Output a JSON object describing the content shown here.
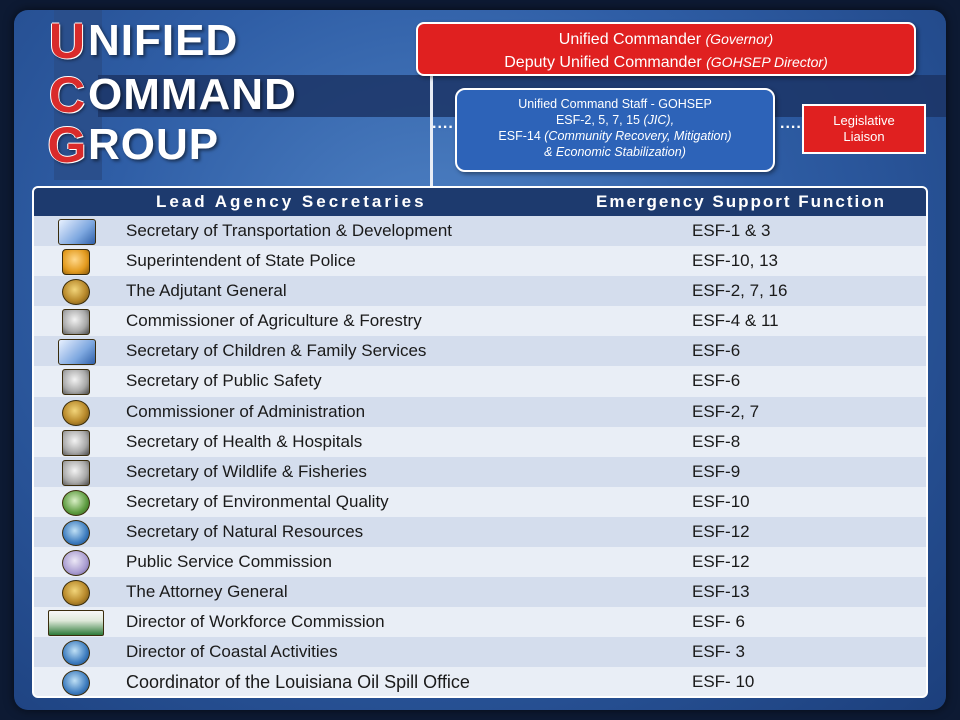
{
  "logo": {
    "line1": {
      "initial": "U",
      "rest": "NIFIED"
    },
    "line2": {
      "initial": "C",
      "rest": "OMMAND"
    },
    "line3": {
      "initial": "G",
      "rest": "ROUP"
    }
  },
  "commander": {
    "line1_main": "Unified Commander",
    "line1_sub": "(Governor)",
    "line2_main": "Deputy Unified Commander",
    "line2_sub": "(GOHSEP Director)"
  },
  "staff": {
    "line1": "Unified Command Staff - GOHSEP",
    "line2_main": "ESF-2, 5, 7, 15",
    "line2_sub": "(JIC),",
    "line3_main": "ESF-14",
    "line3_sub": "(Community Recovery, Mitigation)",
    "line4": "& Economic Stabilization)"
  },
  "liaison": {
    "line1": "Legislative",
    "line2": "Liaison"
  },
  "connectors": {
    "left": "....",
    "right": "...."
  },
  "table": {
    "header_left": "Lead Agency Secretaries",
    "header_right": "Emergency Support Function",
    "rows": [
      {
        "icon": "dotd-seal-icon",
        "secretary": "Secretary of Transportation & Development",
        "esf": "ESF-1 & 3"
      },
      {
        "icon": "state-police-badge-icon",
        "secretary": "Superintendent of State Police",
        "esf": "ESF-10, 13"
      },
      {
        "icon": "adjutant-general-seal-icon",
        "secretary": "The Adjutant General",
        "esf": "ESF-2, 7, 16"
      },
      {
        "icon": "agriculture-seal-icon",
        "secretary": "Commissioner of Agriculture & Forestry",
        "esf": "ESF-4 & 11"
      },
      {
        "icon": "children-family-services-logo-icon",
        "secretary": "Secretary of Children & Family Services",
        "esf": "ESF-6"
      },
      {
        "icon": "public-safety-seal-icon",
        "secretary": "Secretary of Public Safety",
        "esf": "ESF-6"
      },
      {
        "icon": "administration-seal-icon",
        "secretary": "Commissioner of Administration",
        "esf": "ESF-2, 7"
      },
      {
        "icon": "health-hospitals-logo-icon",
        "secretary": "Secretary of Health & Hospitals",
        "esf": "ESF-8"
      },
      {
        "icon": "wildlife-fisheries-seal-icon",
        "secretary": "Secretary of Wildlife & Fisheries",
        "esf": "ESF-9"
      },
      {
        "icon": "deq-logo-icon",
        "secretary": "Secretary of Environmental Quality",
        "esf": "ESF-10"
      },
      {
        "icon": "natural-resources-seal-icon",
        "secretary": "Secretary of Natural Resources",
        "esf": "ESF-12"
      },
      {
        "icon": "public-service-commission-seal-icon",
        "secretary": "Public Service Commission",
        "esf": "ESF-12"
      },
      {
        "icon": "attorney-general-seal-icon",
        "secretary": "The Attorney General",
        "esf": "ESF-13"
      },
      {
        "icon": "workforce-commission-logo-icon",
        "secretary": "Director of Workforce Commission",
        "esf": "ESF- 6"
      },
      {
        "icon": "coastal-activities-seal-icon",
        "secretary": "Director of Coastal Activities",
        "esf": "ESF- 3"
      },
      {
        "icon": "oil-spill-office-seal-icon",
        "secretary": "Coordinator of the Louisiana Oil Spill Office",
        "esf": "ESF- 10"
      }
    ]
  }
}
